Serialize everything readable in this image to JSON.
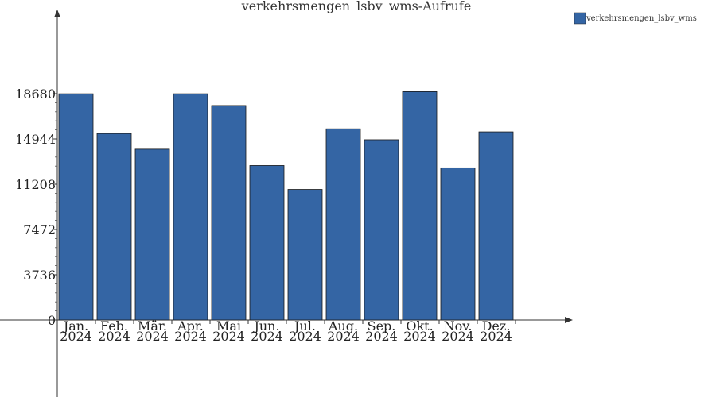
{
  "chart_data": {
    "type": "bar",
    "title": "verkehrsmengen_lsbv_wms-Aufrufe",
    "xlabel": "",
    "ylabel": "",
    "categories": [
      [
        "Jan.",
        "2024"
      ],
      [
        "Feb.",
        "2024"
      ],
      [
        "Mär.",
        "2024"
      ],
      [
        "Apr.",
        "2024"
      ],
      [
        "Mai",
        "2024"
      ],
      [
        "Jun.",
        "2024"
      ],
      [
        "Jul.",
        "2024"
      ],
      [
        "Aug.",
        "2024"
      ],
      [
        "Sep.",
        "2024"
      ],
      [
        "Okt.",
        "2024"
      ],
      [
        "Nov.",
        "2024"
      ],
      [
        "Dez.",
        "2024"
      ]
    ],
    "series": [
      {
        "name": "verkehrsmengen_lsbv_wms",
        "color": "#3465a4",
        "values": [
          18670,
          15390,
          14100,
          18670,
          17700,
          12750,
          10780,
          15780,
          14880,
          18850,
          12560,
          15530
        ]
      }
    ],
    "yticks": [
      0,
      3736,
      7472,
      11208,
      14944,
      18680
    ],
    "ylim": [
      0,
      18680
    ],
    "grid": false,
    "legend": "top-right"
  }
}
